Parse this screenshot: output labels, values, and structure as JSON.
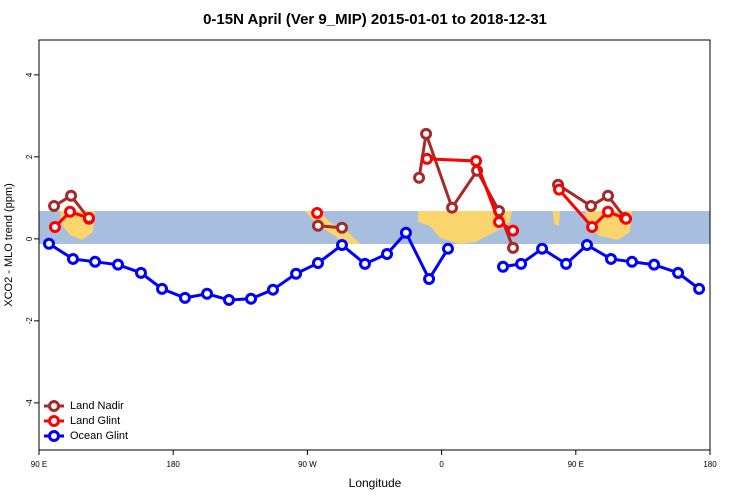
{
  "chart_data": {
    "type": "line",
    "title": "0-15N April (Ver 9_MIP)   2015-01-01 to 2018-12-31",
    "x_label": "Longitude",
    "y_label": "XCO2 - MLO trend (ppm)",
    "xlim": [
      90,
      540
    ],
    "xticks": [
      {
        "value": 90,
        "label": "90 E"
      },
      {
        "value": 180,
        "label": "180"
      },
      {
        "value": 270,
        "label": "90 W"
      },
      {
        "value": 360,
        "label": "0"
      },
      {
        "value": 450,
        "label": "90 E"
      },
      {
        "value": 540,
        "label": "180"
      }
    ],
    "ylim": [
      -5.15,
      4.85
    ],
    "yticks": [
      -4,
      -2,
      0,
      2,
      4
    ],
    "legend": "bottom-left",
    "series": [
      {
        "name": "Land Nadir",
        "color": "#a52a2a",
        "x": [
          100.1,
          111.5,
          123.5,
          200,
          277.1,
          293.2,
          320,
          344.9,
          349.6,
          367,
          383.8,
          398.5,
          407.9,
          420,
          438.1,
          460.2,
          471.6,
          483
        ],
        "values": [
          0.8,
          1.05,
          0.49,
          null,
          0.32,
          0.27,
          null,
          1.49,
          2.56,
          0.76,
          1.66,
          0.68,
          -0.22,
          null,
          1.32,
          0.8,
          1.05,
          0.51
        ]
      },
      {
        "name": "Land Glint",
        "color": "#ff0000",
        "x": [
          100.7,
          110.8,
          123.5,
          200,
          276.5,
          320,
          350.2,
          383.1,
          398.5,
          407.9,
          420,
          438.8,
          460.9,
          471.6,
          483.7
        ],
        "values": [
          0.29,
          0.66,
          0.51,
          null,
          0.63,
          null,
          1.95,
          1.9,
          0.41,
          0.2,
          null,
          1.2,
          0.29,
          0.66,
          0.49
        ]
      },
      {
        "name": "Ocean Glint",
        "color": "#0000ff",
        "x": [
          96.7,
          112.8,
          127.6,
          143,
          158.4,
          172.5,
          187.9,
          202.7,
          217.4,
          232.2,
          246.9,
          262.4,
          277.1,
          293.2,
          308.6,
          323.4,
          336.1,
          351.6,
          364.3,
          380,
          401.2,
          413.3,
          427.4,
          443.5,
          457.5,
          473.6,
          487.7,
          502.5,
          518.6,
          532.7
        ],
        "values": [
          -0.12,
          -0.49,
          -0.56,
          -0.63,
          -0.83,
          -1.22,
          -1.44,
          -1.34,
          -1.49,
          -1.46,
          -1.24,
          -0.85,
          -0.59,
          -0.15,
          -0.61,
          -0.37,
          0.15,
          -0.98,
          -0.24,
          null,
          -0.68,
          -0.61,
          -0.24,
          -0.61,
          -0.15,
          -0.49,
          -0.56,
          -0.63,
          -0.83,
          -1.22
        ]
      }
    ]
  }
}
